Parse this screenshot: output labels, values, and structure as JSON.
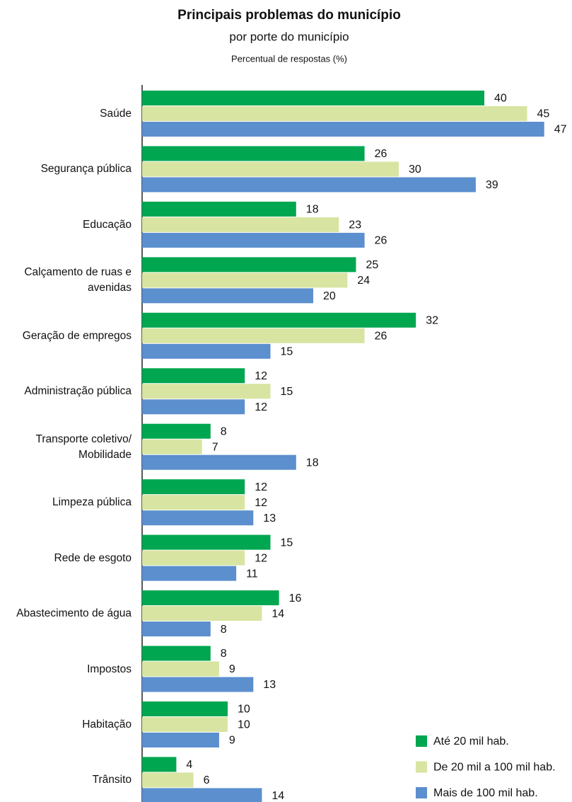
{
  "chart_data": {
    "type": "hbar",
    "title": "Principais problemas do município",
    "subtitle": "por porte do município",
    "y_label": "Percentual de respostas (%)",
    "categories": [
      "Saúde",
      "Segurança pública",
      "Educação",
      "Calçamento de ruas e avenidas",
      "Geração de empregos",
      "Administração pública",
      "Transporte coletivo/ Mobilidade",
      "Limpeza pública",
      "Rede de esgoto",
      "Abastecimento de água",
      "Impostos",
      "Habitação",
      "Trânsito"
    ],
    "series": [
      {
        "name": "Até 20 mil hab.",
        "color": "#00a650",
        "values": [
          40,
          26,
          18,
          25,
          32,
          12,
          8,
          12,
          15,
          16,
          8,
          10,
          4
        ]
      },
      {
        "name": "De 20 mil a 100 mil hab.",
        "color": "#d8e4a2",
        "values": [
          45,
          30,
          23,
          24,
          26,
          15,
          7,
          12,
          12,
          14,
          9,
          10,
          6
        ]
      },
      {
        "name": "Mais de 100 mil hab.",
        "color": "#5b8fce",
        "values": [
          47,
          39,
          26,
          20,
          15,
          12,
          18,
          13,
          11,
          8,
          13,
          9,
          14
        ]
      }
    ],
    "xlim": [
      0,
      50
    ],
    "legend": "bottom-right"
  }
}
